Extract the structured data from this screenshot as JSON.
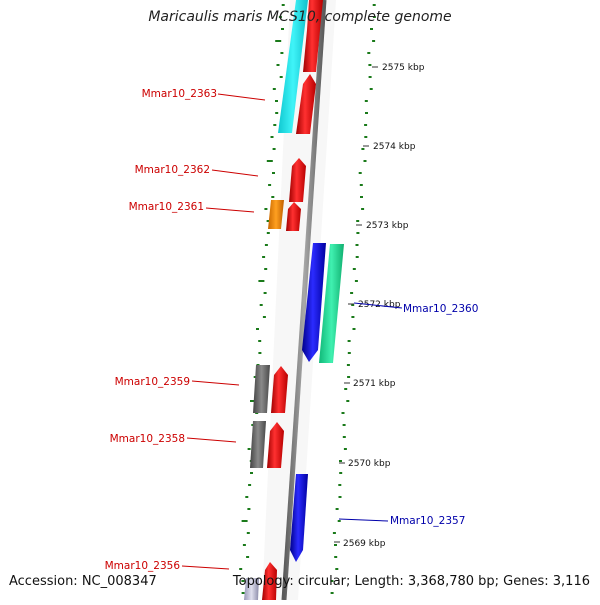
{
  "title": "Maricaulis maris MCS10, complete genome",
  "accession": "Accession: NC_008347",
  "topology": "Topology: circular; Length: 3,368,780 bp; Genes: 3,116",
  "ticks": [
    "2575 kbp",
    "2574 kbp",
    "2573 kbp",
    "2572 kbp",
    "2571 kbp",
    "2570 kbp",
    "2569 kbp"
  ],
  "gene_labels": {
    "g2363": "Mmar10_2363",
    "g2362": "Mmar10_2362",
    "g2361": "Mmar10_2361",
    "g2360": "Mmar10_2360",
    "g2359": "Mmar10_2359",
    "g2358": "Mmar10_2358",
    "g2357": "Mmar10_2357",
    "g2356": "Mmar10_2356"
  },
  "colors": {
    "forward_gene": "#ee1111",
    "reverse_gene": "#1a1aee",
    "label_forward": "#cc0000",
    "label_reverse": "#0000aa",
    "cyan_feature": "#22e8ee",
    "orange_feature": "#f08a00",
    "green_feature": "#22dd99",
    "gray_feature": "#666666",
    "backbone": "#808080",
    "gc_dots": "#1a7a1a"
  }
}
